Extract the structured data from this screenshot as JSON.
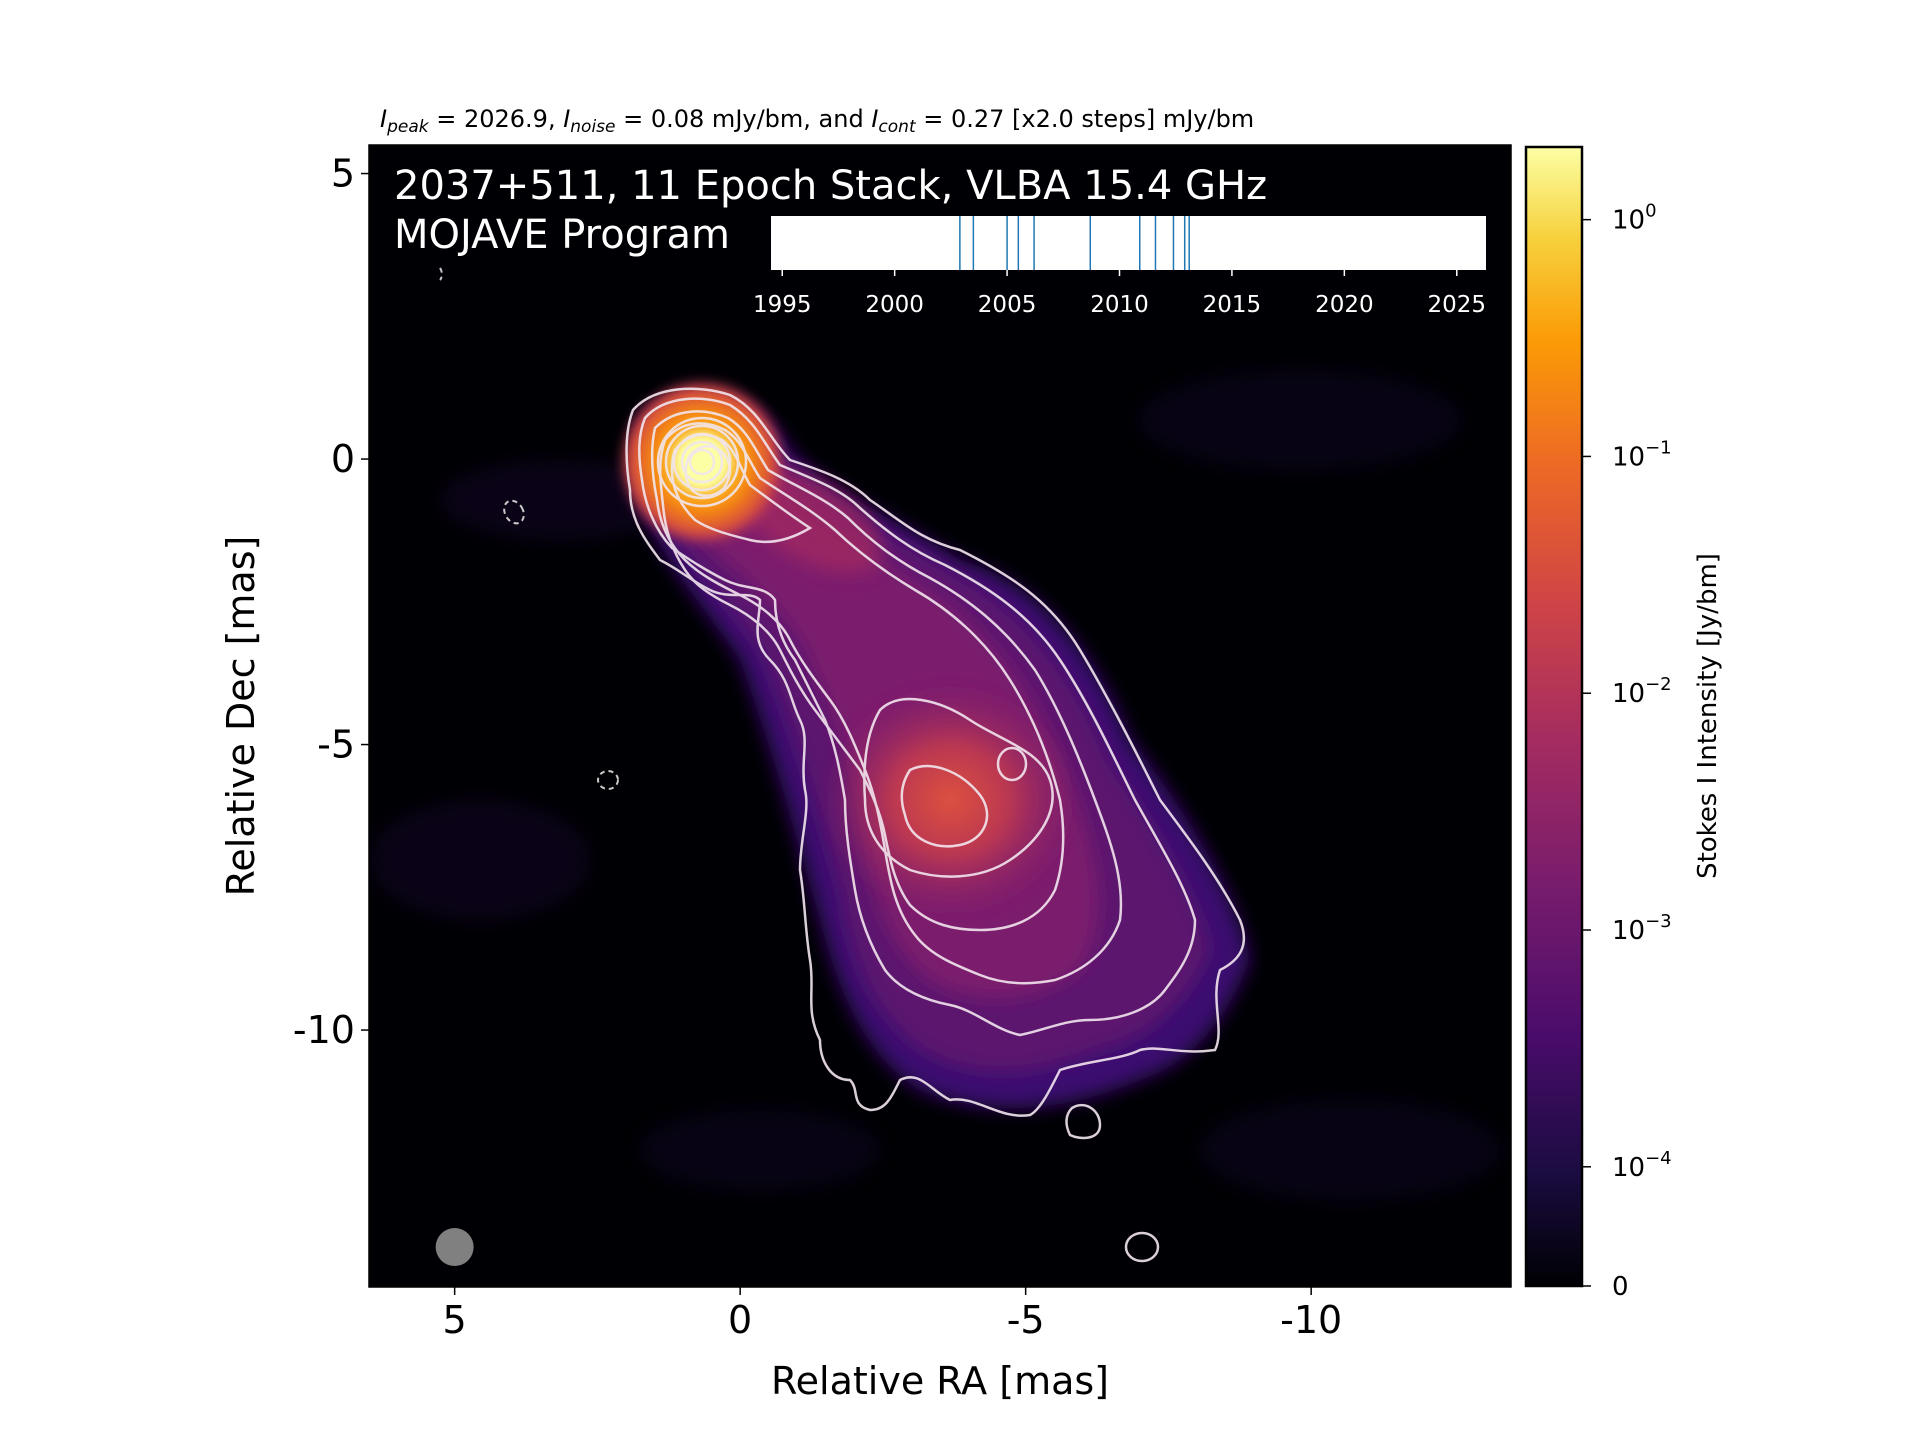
{
  "chart_data": {
    "type": "heatmap",
    "header": {
      "peak_sym": "I",
      "peak_sub": "peak",
      "peak_text": " = 2026.9, ",
      "noise_sym": "I",
      "noise_sub": "noise",
      "noise_text": " = 0.08 mJy/bm, and ",
      "cont_sym": "I",
      "cont_sub": "cont",
      "cont_text": " = 0.27 [x2.0 steps] mJy/bm"
    },
    "title_line1": "2037+511, 11 Epoch Stack, VLBA 15.4 GHz",
    "title_line2": "MOJAVE Program",
    "xlabel": "Relative RA [mas]",
    "ylabel": "Relative Dec [mas]",
    "x_ticks": [
      "5",
      "0",
      "-5",
      "-10"
    ],
    "y_ticks": [
      "5",
      "0",
      "-5",
      "-10"
    ],
    "xlim": [
      6.5,
      -13.5
    ],
    "ylim": [
      -14.5,
      5.5
    ],
    "colormap": "inferno",
    "colorbar": {
      "label": "Stokes I Intensity [Jy/bm]",
      "tick_base": "10",
      "ticks": [
        {
          "exp": "0",
          "value": 1
        },
        {
          "exp": "−1",
          "value": 0.1
        },
        {
          "exp": "−2",
          "value": 0.01
        },
        {
          "exp": "−3",
          "value": 0.001
        },
        {
          "exp": "−4",
          "value": 0.0001
        }
      ],
      "zero_label": "0",
      "max_value": 2.0269
    },
    "epochs_timeline": {
      "ticks": [
        "1995",
        "2000",
        "2005",
        "2010",
        "2015",
        "2020",
        "2025"
      ],
      "range": [
        1994.5,
        2026.3
      ],
      "epochs": [
        2002.9,
        2003.5,
        2005.0,
        2005.5,
        2006.2,
        2008.7,
        2010.9,
        2011.6,
        2012.4,
        2012.9,
        2013.1
      ],
      "line_color": "#1f77b4"
    },
    "beam": {
      "x_mas": 5.0,
      "y_mas": -13.8,
      "color": "#808080"
    }
  }
}
